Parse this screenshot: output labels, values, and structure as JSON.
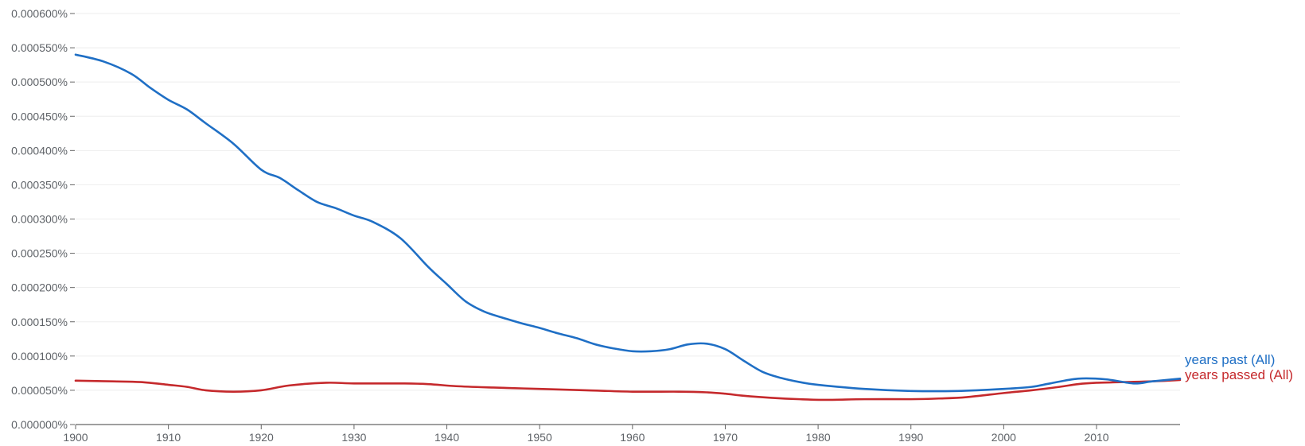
{
  "chart_data": {
    "type": "line",
    "title": "",
    "xlabel": "",
    "ylabel": "",
    "xlim": [
      1900,
      2019
    ],
    "ylim": [
      0,
      0.0006
    ],
    "grid": true,
    "legend_placement": "right, at line ends",
    "x_ticks": [
      1900,
      1910,
      1920,
      1930,
      1940,
      1950,
      1960,
      1970,
      1980,
      1990,
      2000,
      2010
    ],
    "x_tick_labels": [
      "1900",
      "1910",
      "1920",
      "1930",
      "1940",
      "1950",
      "1960",
      "1970",
      "1980",
      "1990",
      "2000",
      "2010"
    ],
    "y_ticks": [
      0,
      5e-05,
      0.0001,
      0.00015,
      0.0002,
      0.00025,
      0.0003,
      0.00035,
      0.0004,
      0.00045,
      0.0005,
      0.00055,
      0.0006
    ],
    "y_tick_labels": [
      "0.000000%",
      "0.000050%",
      "0.000100%",
      "0.000150%",
      "0.000200%",
      "0.000250%",
      "0.000300%",
      "0.000350%",
      "0.000400%",
      "0.000450%",
      "0.000500%",
      "0.000550%",
      "0.000600%"
    ],
    "series": [
      {
        "name": "years past (All)",
        "color": "#1f6fc5",
        "x": [
          1900,
          1903,
          1906,
          1908,
          1910,
          1912,
          1914,
          1917,
          1920,
          1922,
          1924,
          1926,
          1928,
          1930,
          1932,
          1935,
          1938,
          1940,
          1942,
          1944,
          1946,
          1948,
          1950,
          1952,
          1954,
          1956,
          1958,
          1960,
          1962,
          1964,
          1966,
          1968,
          1970,
          1972,
          1974,
          1976,
          1978,
          1980,
          1985,
          1990,
          1995,
          2000,
          2003,
          2005,
          2008,
          2011,
          2014,
          2016,
          2019
        ],
        "values": [
          0.00054,
          0.00053,
          0.000512,
          0.000492,
          0.000474,
          0.00046,
          0.00044,
          0.00041,
          0.000372,
          0.00036,
          0.000342,
          0.000325,
          0.000316,
          0.000305,
          0.000296,
          0.000272,
          0.00023,
          0.000205,
          0.00018,
          0.000165,
          0.000156,
          0.000148,
          0.000141,
          0.000133,
          0.000126,
          0.000117,
          0.000111,
          0.000107,
          0.000107,
          0.00011,
          0.000117,
          0.000118,
          0.00011,
          9.3e-05,
          7.7e-05,
          6.8e-05,
          6.2e-05,
          5.8e-05,
          5.2e-05,
          4.9e-05,
          4.9e-05,
          5.2e-05,
          5.5e-05,
          6e-05,
          6.7e-05,
          6.6e-05,
          6e-05,
          6.3e-05,
          6.7e-05
        ]
      },
      {
        "name": "years passed (All)",
        "color": "#c5292c",
        "x": [
          1900,
          1904,
          1907,
          1910,
          1912,
          1914,
          1917,
          1920,
          1923,
          1927,
          1930,
          1935,
          1938,
          1941,
          1945,
          1950,
          1955,
          1960,
          1965,
          1968,
          1970,
          1972,
          1975,
          1978,
          1981,
          1985,
          1990,
          1993,
          1996,
          2000,
          2003,
          2006,
          2008,
          2010,
          2013,
          2016,
          2019
        ],
        "values": [
          6.4e-05,
          6.3e-05,
          6.2e-05,
          5.8e-05,
          5.5e-05,
          5e-05,
          4.8e-05,
          5e-05,
          5.7e-05,
          6.1e-05,
          6e-05,
          6e-05,
          5.9e-05,
          5.6e-05,
          5.4e-05,
          5.2e-05,
          5e-05,
          4.8e-05,
          4.8e-05,
          4.7e-05,
          4.5e-05,
          4.2e-05,
          3.9e-05,
          3.7e-05,
          3.6e-05,
          3.7e-05,
          3.7e-05,
          3.8e-05,
          4e-05,
          4.6e-05,
          5e-05,
          5.5e-05,
          5.9e-05,
          6.1e-05,
          6.2e-05,
          6.3e-05,
          6.5e-05
        ]
      }
    ]
  }
}
